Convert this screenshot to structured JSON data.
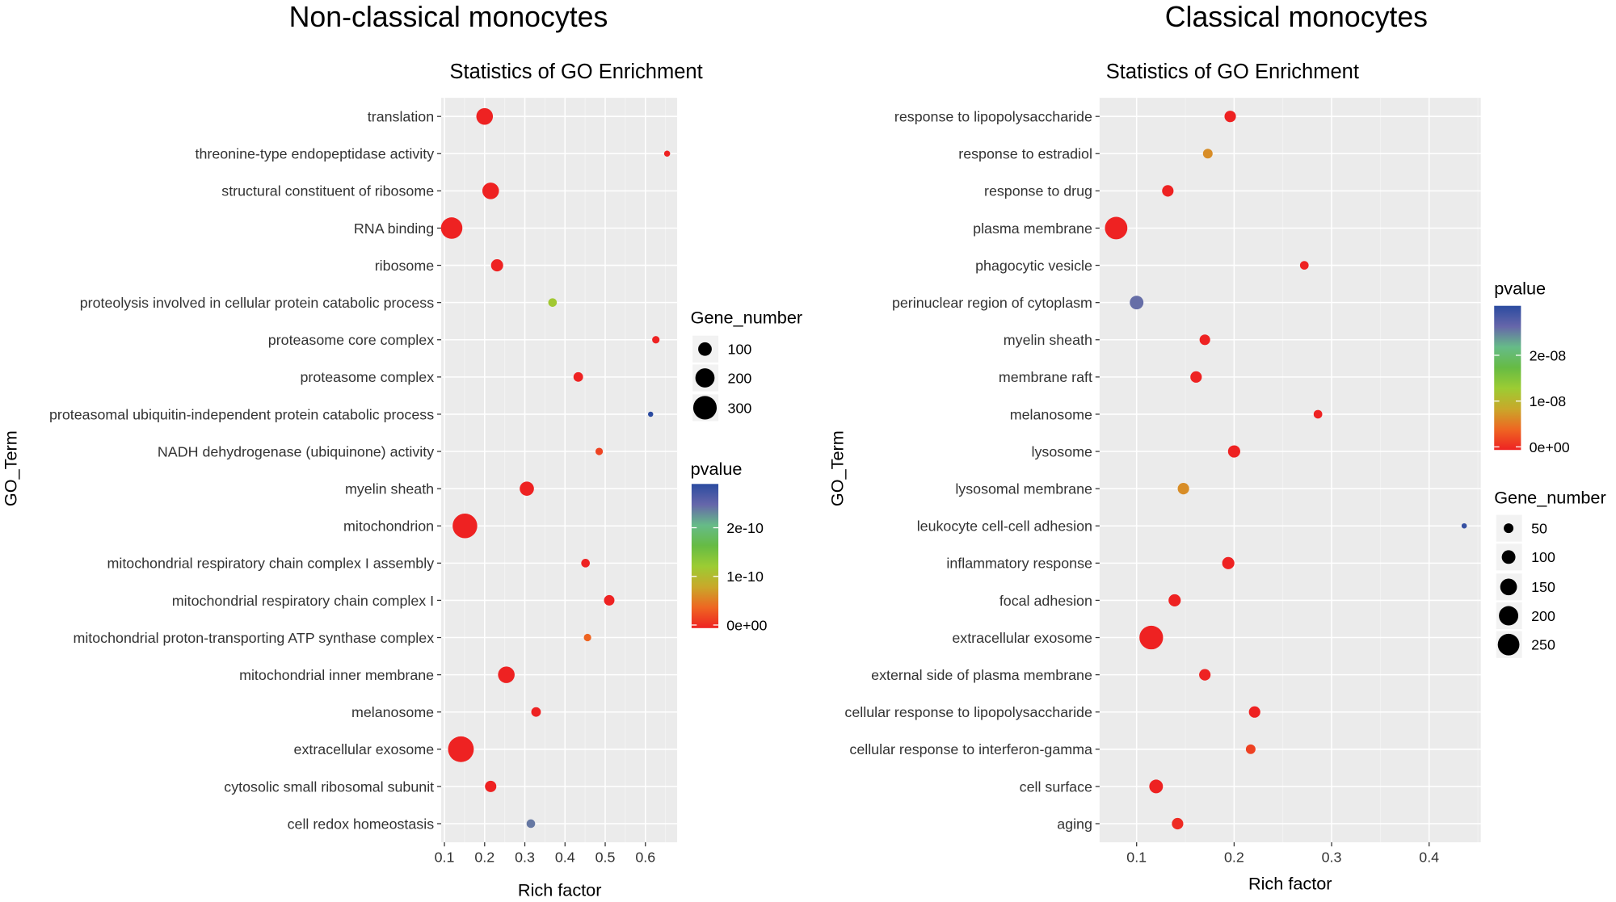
{
  "chart_data": [
    {
      "type": "scatter",
      "figure_title": "Non-classical monocytes",
      "title": "Statistics of GO Enrichment",
      "xlabel": "Rich factor",
      "ylabel": "GO_Term",
      "xlim": [
        0.092,
        0.679
      ],
      "xticks": [
        "0.1",
        "0.2",
        "0.3",
        "0.4",
        "0.5",
        "0.6"
      ],
      "grid": true,
      "size_legend": {
        "title": "Gene_number",
        "values": [
          100,
          200,
          300
        ]
      },
      "color_legend": {
        "title": "pvalue",
        "range": [
          0,
          2.9e-10
        ],
        "ticks": [
          "0e+00",
          "1e-10",
          "2e-10"
        ]
      },
      "legend_placement": "right",
      "terms": [
        "translation",
        "threonine-type endopeptidase activity",
        "structural constituent of ribosome",
        "RNA binding",
        "ribosome",
        "proteolysis involved in cellular protein catabolic process",
        "proteasome core complex",
        "proteasome complex",
        "proteasomal ubiquitin-independent protein catabolic process",
        "NADH dehydrogenase (ubiquinone) activity",
        "myelin sheath",
        "mitochondrion",
        "mitochondrial respiratory chain complex I assembly",
        "mitochondrial respiratory chain complex I",
        "mitochondrial proton-transporting ATP synthase complex",
        "mitochondrial inner membrane",
        "melanosome",
        "extracellular exosome",
        "cytosolic small ribosomal subunit",
        "cell redox homeostasis"
      ],
      "rich_factor": [
        0.2,
        0.654,
        0.215,
        0.118,
        0.231,
        0.369,
        0.626,
        0.433,
        0.613,
        0.485,
        0.305,
        0.151,
        0.451,
        0.51,
        0.456,
        0.254,
        0.328,
        0.141,
        0.215,
        0.315
      ],
      "gene_number": [
        150,
        20,
        150,
        250,
        80,
        40,
        30,
        50,
        15,
        30,
        110,
        330,
        40,
        60,
        30,
        150,
        50,
        360,
        70,
        40
      ],
      "pvalue": [
        0,
        0,
        0,
        0,
        0,
        1.2e-10,
        0,
        0,
        2.9e-10,
        2e-11,
        0,
        0,
        0,
        0,
        4e-11,
        0,
        0,
        0,
        0,
        2.4e-10
      ]
    },
    {
      "type": "scatter",
      "figure_title": "Classical monocytes",
      "title": "Statistics of GO Enrichment",
      "xlabel": "Rich factor",
      "ylabel": "GO_Term",
      "xlim": [
        0.062,
        0.453
      ],
      "xticks": [
        "0.1",
        "0.2",
        "0.3",
        "0.4"
      ],
      "grid": true,
      "size_legend": {
        "title": "Gene_number",
        "values": [
          50,
          100,
          150,
          200,
          250
        ]
      },
      "color_legend": {
        "title": "pvalue",
        "range": [
          0,
          3.08e-08
        ],
        "ticks": [
          "0e+00",
          "1e-08",
          "2e-08"
        ]
      },
      "legend_placement": "right",
      "terms": [
        "response to lipopolysaccharide",
        "response to estradiol",
        "response to drug",
        "plasma membrane",
        "phagocytic vesicle",
        "perinuclear region of cytoplasm",
        "myelin sheath",
        "membrane raft",
        "melanosome",
        "lysosome",
        "lysosomal membrane",
        "leukocyte cell-cell adhesion",
        "inflammatory response",
        "focal adhesion",
        "extracellular exosome",
        "external side of plasma membrane",
        "cellular response to lipopolysaccharide",
        "cellular response to interferon-gamma",
        "cell surface",
        "aging"
      ],
      "rich_factor": [
        0.196,
        0.173,
        0.132,
        0.079,
        0.272,
        0.1,
        0.17,
        0.161,
        0.286,
        0.2,
        0.148,
        0.436,
        0.194,
        0.139,
        0.115,
        0.17,
        0.221,
        0.217,
        0.12,
        0.142
      ],
      "gene_number": [
        70,
        50,
        70,
        270,
        40,
        100,
        60,
        70,
        40,
        80,
        70,
        15,
        80,
        80,
        300,
        70,
        70,
        50,
        100,
        70
      ],
      "pvalue": [
        0,
        7e-09,
        0,
        0,
        0,
        2.6e-08,
        0,
        0,
        0,
        0,
        7e-09,
        3e-08,
        0,
        0,
        0,
        0,
        0,
        2e-09,
        0,
        5e-10
      ]
    }
  ],
  "colors": {
    "panel_bg": "#ebebeb",
    "grid": "#ffffff",
    "gradient": [
      "#ee2222",
      "#ee6622",
      "#c9a82a",
      "#9ccc33",
      "#66bb44",
      "#66bb88",
      "#6666aa",
      "#2b4ba0"
    ]
  }
}
